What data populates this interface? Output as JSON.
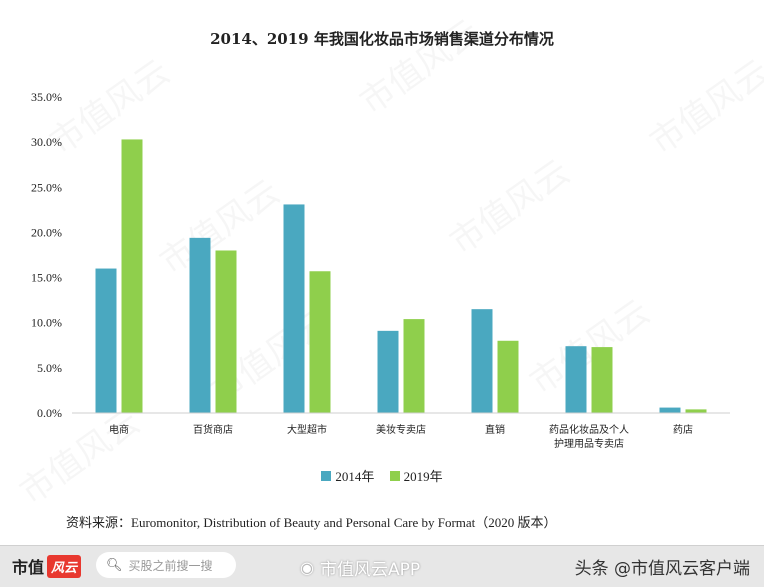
{
  "chart_data": {
    "type": "bar",
    "title": "2014、2019 年我国化妆品市场销售渠道分布情况",
    "categories": [
      "电商",
      "百货商店",
      "大型超市",
      "美妆专卖店",
      "直销",
      "药品化妆品及个人护理用品专卖店",
      "药店"
    ],
    "category_lines": [
      [
        "电商"
      ],
      [
        "百货商店"
      ],
      [
        "大型超市"
      ],
      [
        "美妆专卖店"
      ],
      [
        "直销"
      ],
      [
        "药品化妆品及个人",
        "护理用品专卖店"
      ],
      [
        "药店"
      ]
    ],
    "series": [
      {
        "name": "2014年",
        "color": "#4aa8c0",
        "values": [
          16.0,
          19.4,
          23.1,
          9.1,
          11.5,
          7.4,
          0.6
        ]
      },
      {
        "name": "2019年",
        "color": "#8fcf4c",
        "values": [
          30.3,
          18.0,
          15.7,
          10.4,
          8.0,
          7.3,
          0.4
        ]
      }
    ],
    "ylim": [
      0,
      35
    ],
    "yticks": [
      "0.0%",
      "5.0%",
      "10.0%",
      "15.0%",
      "20.0%",
      "25.0%",
      "30.0%",
      "35.0%"
    ],
    "grid": false,
    "legend_position": "bottom"
  },
  "source_text": "资料来源：Euromonitor, Distribution of Beauty and Personal Care by Format（2020 版本）",
  "watermark_text": "市值风云",
  "footer": {
    "logo_text": "市值",
    "logo_badge": "风云",
    "search_placeholder": "买股之前搜一搜",
    "search_icon": "search-icon",
    "weibo_text": "市值风云APP",
    "weibo_icon": "weibo-icon",
    "toutiao_text": "头条 @市值风云客户端"
  }
}
